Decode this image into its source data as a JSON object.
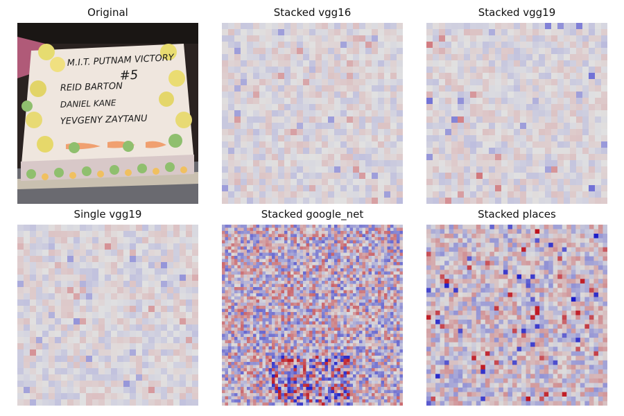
{
  "panels": [
    {
      "title": "Original"
    },
    {
      "title": "Stacked vgg16"
    },
    {
      "title": "Stacked vgg19"
    },
    {
      "title": "Single vgg19"
    },
    {
      "title": "Stacked google_net"
    },
    {
      "title": "Stacked places"
    }
  ],
  "original": {
    "cake_text": [
      "M.I.T. PUTNAM VICTORY",
      "#5",
      "REID BARTON",
      "DANIEL KANE",
      "YEVGENY ZAYTANU"
    ]
  },
  "colors": {
    "heat_positive": "#c0001a",
    "heat_negative": "#1a1acc",
    "heat_neutral": "#dcdcdc"
  }
}
